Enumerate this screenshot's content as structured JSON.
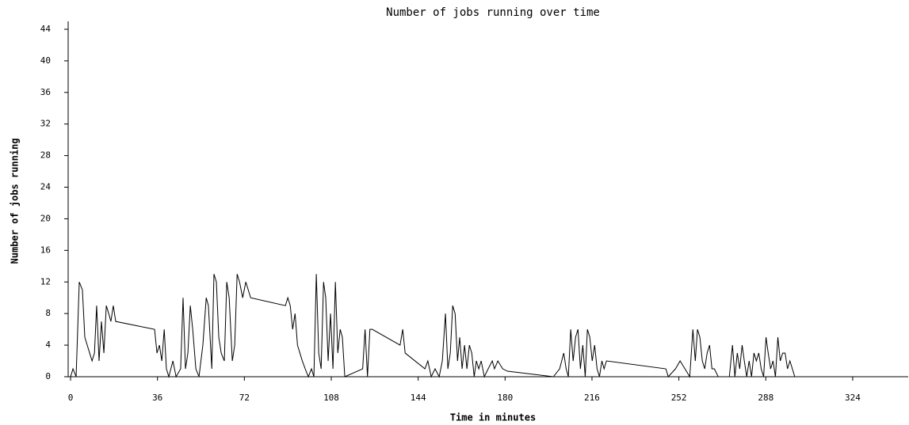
{
  "chart_data": {
    "type": "line",
    "title": "Number of jobs running over time",
    "x_label": "Time in minutes",
    "y_label": "Number of jobs running",
    "color": "#000000",
    "xlim": [
      -1,
      347
    ],
    "ylim": [
      0,
      45
    ],
    "xticks": [
      0,
      36,
      72,
      108,
      144,
      180,
      216,
      252,
      288,
      324
    ],
    "yticks": [
      0,
      4,
      8,
      12,
      16,
      20,
      24,
      28,
      32,
      36,
      40,
      44
    ],
    "x": [
      0,
      1,
      2.3,
      3.6,
      4.9,
      5.9,
      6.9,
      7.9,
      8.9,
      9.9,
      10.8,
      11.8,
      12.8,
      13.8,
      14.8,
      15.8,
      16.7,
      17.7,
      18.7,
      34.8,
      35.8,
      36.8,
      37.8,
      38.8,
      39.7,
      40.7,
      42.4,
      43.7,
      45.6,
      46.6,
      47.6,
      48.6,
      49.6,
      50.6,
      51.9,
      53.2,
      54.8,
      56.2,
      57.1,
      58.5,
      59.4,
      60.4,
      61.4,
      62.4,
      63.7,
      64.7,
      65.7,
      67,
      68,
      69,
      70,
      71.3,
      72.6,
      73.6,
      74.6,
      89,
      90,
      91,
      92,
      93,
      94,
      95,
      96,
      97.2,
      98.5,
      99.8,
      100.8,
      101.8,
      102.8,
      103.8,
      104.8,
      105.7,
      106.7,
      107.7,
      108.7,
      109.7,
      110.7,
      111.7,
      112.6,
      113.6,
      121,
      122,
      123,
      124,
      125,
      136.5,
      137.6,
      138.6,
      146.8,
      148,
      149.4,
      151,
      152.7,
      154,
      155.3,
      156.3,
      157.3,
      158.3,
      159.3,
      160.3,
      161.2,
      162.2,
      163.2,
      164.2,
      165.2,
      166.2,
      167.2,
      168.1,
      169.1,
      170.1,
      171.4,
      173,
      174.7,
      175.6,
      177,
      179,
      181,
      200,
      202.6,
      204.3,
      205.3,
      206.2,
      207.2,
      208.2,
      209.2,
      210.2,
      211.2,
      212.2,
      213.2,
      214.1,
      215.1,
      216.1,
      217.1,
      218.1,
      219.1,
      220.1,
      221,
      222,
      246.6,
      247.6,
      250.6,
      252.5,
      254.5,
      256.5,
      257.8,
      258.8,
      259.7,
      260.7,
      261.7,
      262.7,
      263.7,
      264.7,
      265.7,
      266.7,
      268.3,
      272.9,
      274.2,
      275.2,
      276.2,
      277.2,
      278.2,
      279.1,
      280.1,
      281.1,
      282.1,
      283.1,
      284.1,
      285.1,
      286.1,
      287.1,
      288.1,
      289,
      290,
      291,
      292,
      293,
      294,
      295,
      296,
      297,
      298,
      299,
      300,
      301
    ],
    "values": [
      0,
      1,
      0,
      12,
      11,
      5,
      4,
      3,
      2,
      3,
      9,
      2,
      7,
      3,
      9,
      8,
      7,
      9,
      7,
      6,
      3,
      4,
      2,
      6,
      1,
      0,
      2,
      0,
      1,
      10,
      1,
      3,
      9,
      6,
      1,
      0,
      4,
      10,
      9,
      1,
      13,
      12,
      5,
      3,
      2,
      12,
      10,
      2,
      4,
      13,
      12,
      10,
      12,
      11,
      10,
      9,
      10,
      9,
      6,
      8,
      4,
      3,
      2,
      1,
      0,
      1,
      0,
      13,
      3,
      1,
      12,
      10,
      2,
      8,
      1,
      12,
      3,
      6,
      5,
      0,
      1,
      6,
      0,
      6,
      6,
      4,
      6,
      3,
      1,
      2,
      0,
      1,
      0,
      2,
      8,
      1,
      3,
      9,
      8,
      2,
      5,
      1,
      4,
      1,
      4,
      3,
      0,
      2,
      1,
      2,
      0,
      1,
      2,
      1,
      2,
      1,
      0.7,
      0,
      1,
      3,
      1,
      0,
      6,
      2,
      5,
      6,
      1,
      4,
      0,
      6,
      5,
      2,
      4,
      1,
      0,
      2,
      1,
      2,
      1,
      0,
      1,
      2,
      1,
      0,
      6,
      2,
      6,
      5,
      2,
      1,
      3,
      4,
      1,
      1,
      0,
      0,
      4,
      0,
      3,
      1,
      4,
      2,
      0,
      2,
      0,
      3,
      2,
      3,
      1,
      0,
      5,
      3,
      1,
      2,
      0,
      5,
      2,
      3,
      3,
      1,
      2,
      1,
      0,
      0
    ]
  }
}
